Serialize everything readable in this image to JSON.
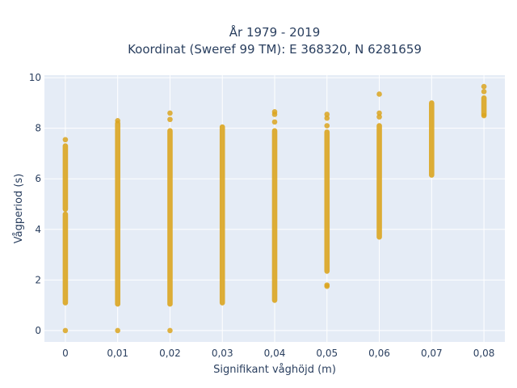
{
  "chart_data": {
    "type": "scatter",
    "title_line1": "År 1979 - 2019",
    "title_line2": "Koordinat (Sweref 99 TM): E 368320, N 6281659",
    "xlabel": "Signifikant våghöjd (m)",
    "ylabel": "Vågperiod (s)",
    "xlim": [
      -0.004,
      0.084
    ],
    "ylim": [
      -0.45,
      10.1
    ],
    "x_ticks": [
      0,
      0.01,
      0.02,
      0.03,
      0.04,
      0.05,
      0.06,
      0.07,
      0.08
    ],
    "x_tick_labels": [
      "0",
      "0,01",
      "0,02",
      "0,03",
      "0,04",
      "0,05",
      "0,06",
      "0,07",
      "0,08"
    ],
    "y_ticks": [
      0,
      2,
      4,
      6,
      8,
      10
    ],
    "y_tick_labels": [
      "0",
      "2",
      "4",
      "6",
      "8",
      "10"
    ],
    "grid": true,
    "marker_color": "#daa520",
    "plot_bg": "#e5ecf6",
    "series": [
      {
        "columns": [
          {
            "x": 0,
            "y_ranges": [
              [
                1.1,
                4.6
              ],
              [
                4.8,
                7.3
              ]
            ],
            "points": [
              0,
              7.55
            ]
          },
          {
            "x": 0.01,
            "y_ranges": [
              [
                1.05,
                8.2
              ]
            ],
            "points": [
              0,
              8.3
            ]
          },
          {
            "x": 0.02,
            "y_ranges": [
              [
                1.05,
                7.9
              ]
            ],
            "points": [
              0,
              8.35,
              8.6
            ]
          },
          {
            "x": 0.03,
            "y_ranges": [
              [
                1.1,
                8.05
              ]
            ],
            "points": []
          },
          {
            "x": 0.04,
            "y_ranges": [
              [
                1.2,
                7.9
              ]
            ],
            "points": [
              8.25,
              8.55,
              8.65
            ]
          },
          {
            "x": 0.05,
            "y_ranges": [
              [
                2.35,
                7.85
              ]
            ],
            "points": [
              1.75,
              1.8,
              8.1,
              8.4,
              8.55
            ]
          },
          {
            "x": 0.06,
            "y_ranges": [
              [
                3.7,
                8.1
              ]
            ],
            "points": [
              8.45,
              8.6,
              9.35
            ]
          },
          {
            "x": 0.07,
            "y_ranges": [
              [
                6.15,
                9.0
              ]
            ],
            "points": []
          },
          {
            "x": 0.08,
            "y_ranges": [
              [
                8.55,
                9.2
              ]
            ],
            "points": [
              8.5,
              9.45,
              9.65
            ]
          }
        ]
      }
    ]
  }
}
